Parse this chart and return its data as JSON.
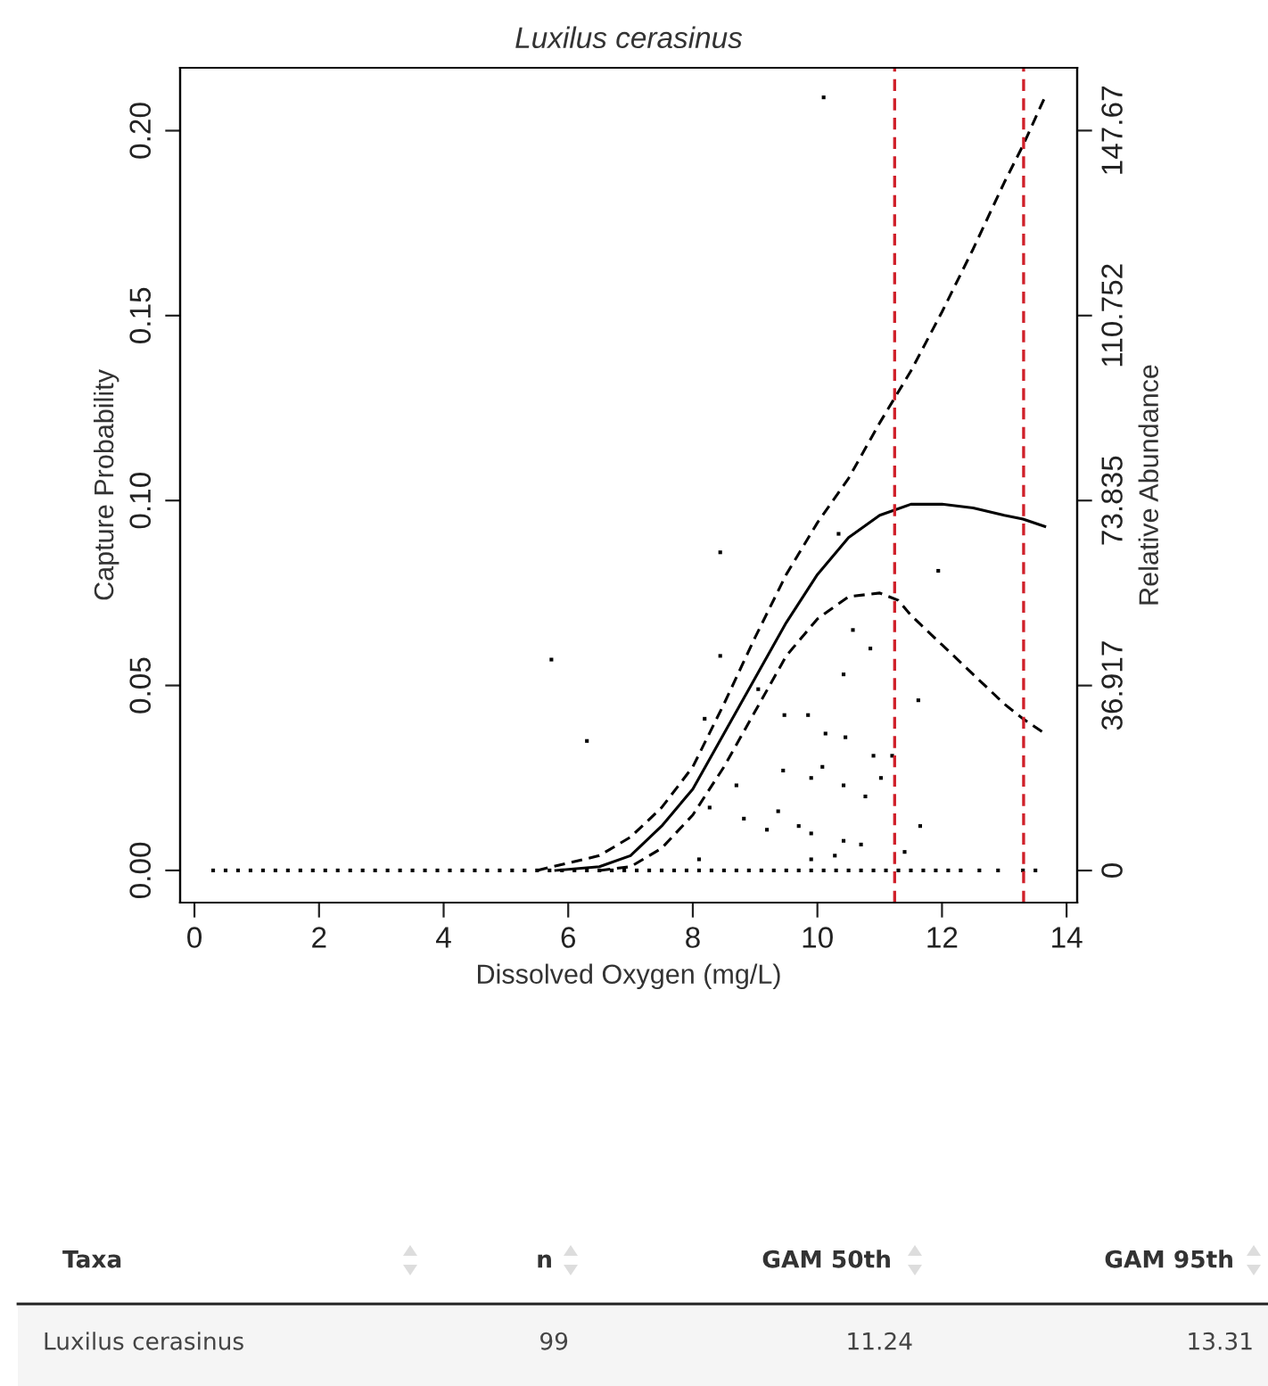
{
  "chart_data": {
    "type": "scatter",
    "title": "Luxilus cerasinus",
    "xlabel": "Dissolved Oxygen (mg/L)",
    "ylabel": "Capture Probability",
    "y2label": "Relative Abundance",
    "xlim": [
      -0.23,
      14.17
    ],
    "xticks": [
      0,
      2,
      4,
      6,
      8,
      10,
      12,
      14
    ],
    "ylim": [
      -0.0087,
      0.217
    ],
    "yticks": [
      {
        "value": 0,
        "label": "0.00"
      },
      {
        "value": 0.05,
        "label": "0.05"
      },
      {
        "value": 0.1,
        "label": "0.10"
      },
      {
        "value": 0.15,
        "label": "0.15"
      },
      {
        "value": 0.2,
        "label": "0.20"
      }
    ],
    "y2lim": [
      -6.4,
      160.2
    ],
    "y2ticks": [
      0,
      36.917,
      73.835,
      110.752,
      147.67
    ],
    "grid": false,
    "legend": false,
    "series": [
      {
        "color": "#000000",
        "marker": "square",
        "x": [
          0.3,
          0.5,
          0.7,
          0.9,
          1.1,
          1.3,
          1.5,
          1.7,
          1.9,
          2.1,
          2.3,
          2.5,
          2.7,
          2.9,
          3.1,
          3.3,
          3.5,
          3.7,
          3.9,
          4.1,
          4.3,
          4.5,
          4.7,
          4.9,
          5.1,
          5.3,
          5.5,
          5.7,
          5.9,
          6.1,
          6.3,
          6.5,
          6.7,
          6.9,
          7.1,
          7.3,
          7.5,
          7.7,
          7.9,
          8.1,
          8.3,
          8.5,
          8.7,
          8.9,
          9.1,
          9.3,
          9.5,
          9.7,
          9.9,
          10.1,
          10.3,
          10.5,
          10.7,
          10.9,
          11.1,
          11.3,
          11.5,
          11.7,
          11.9,
          12.1,
          12.3,
          12.6,
          12.9,
          13.3,
          13.5,
          10.1,
          5.73,
          6.3,
          8.44,
          8.44,
          10.34,
          11.94,
          10.57,
          10.85,
          10.42,
          11.62,
          9.05,
          8.19,
          9.47,
          9.85,
          10.13,
          10.45,
          10.9,
          11.2,
          9.45,
          10.08,
          9.9,
          10.42,
          11.02,
          10.77,
          8.7,
          11.65,
          8.27,
          9.37,
          8.82,
          9.19,
          9.7,
          9.9,
          10.42,
          10.7,
          10.28,
          8.1,
          9.9,
          11.4
        ],
        "values": [
          0,
          0,
          0,
          0,
          0,
          0,
          0,
          0,
          0,
          0,
          0,
          0,
          0,
          0,
          0,
          0,
          0,
          0,
          0,
          0,
          0,
          0,
          0,
          0,
          0,
          0,
          0,
          0,
          0,
          0,
          0,
          0,
          0,
          0,
          0,
          0,
          0,
          0,
          0,
          0,
          0,
          0,
          0,
          0,
          0,
          0,
          0,
          0,
          0,
          0,
          0,
          0,
          0,
          0,
          0,
          0,
          0,
          0,
          0,
          0,
          0,
          0,
          0,
          0,
          0,
          0.209,
          0.057,
          0.035,
          0.086,
          0.058,
          0.091,
          0.081,
          0.065,
          0.06,
          0.053,
          0.046,
          0.049,
          0.041,
          0.042,
          0.042,
          0.037,
          0.036,
          0.031,
          0.031,
          0.027,
          0.028,
          0.025,
          0.023,
          0.025,
          0.02,
          0.023,
          0.012,
          0.017,
          0.016,
          0.014,
          0.011,
          0.012,
          0.01,
          0.008,
          0.007,
          0.004,
          0.003,
          0.003,
          0.005
        ]
      },
      {
        "type": "line",
        "color": "#000000",
        "line_style": "solid",
        "x": [
          5.8,
          6.5,
          7,
          7.5,
          8,
          8.5,
          9,
          9.5,
          10,
          10.5,
          11,
          11.5,
          12,
          12.5,
          13,
          13.3,
          13.65
        ],
        "values": [
          0,
          0.001,
          0.004,
          0.012,
          0.022,
          0.037,
          0.052,
          0.067,
          0.08,
          0.09,
          0.096,
          0.099,
          0.099,
          0.098,
          0.096,
          0.095,
          0.093
        ]
      },
      {
        "type": "line",
        "color": "#000000",
        "line_style": "dashed",
        "x": [
          5.5,
          6,
          6.5,
          7,
          7.5,
          8,
          8.5,
          9,
          9.5,
          10,
          10.5,
          11,
          11.5,
          12,
          12.5,
          13,
          13.3,
          13.65
        ],
        "values": [
          0,
          0.002,
          0.004,
          0.009,
          0.017,
          0.028,
          0.045,
          0.063,
          0.08,
          0.094,
          0.106,
          0.121,
          0.135,
          0.151,
          0.168,
          0.186,
          0.196,
          0.209
        ]
      },
      {
        "type": "line",
        "color": "#000000",
        "line_style": "dashed",
        "x": [
          6.5,
          7,
          7.5,
          8,
          8.5,
          9,
          9.5,
          10,
          10.5,
          11,
          11.3,
          11.5,
          12,
          12.5,
          13,
          13.3,
          13.65
        ],
        "values": [
          0,
          0.001,
          0.006,
          0.015,
          0.028,
          0.043,
          0.058,
          0.068,
          0.074,
          0.075,
          0.073,
          0.069,
          0.061,
          0.053,
          0.045,
          0.041,
          0.037
        ]
      }
    ],
    "ref_lines": [
      {
        "axis": "x",
        "value": 11.24,
        "color": "#d0202a",
        "line_style": "dashed"
      },
      {
        "axis": "x",
        "value": 13.31,
        "color": "#d0202a",
        "line_style": "dashed"
      }
    ],
    "annotations": [
      "Taxa",
      "n",
      "GAM 50th",
      "GAM 95th",
      "Luxilus cerasinus",
      "99",
      "11.24",
      "13.31"
    ]
  }
}
